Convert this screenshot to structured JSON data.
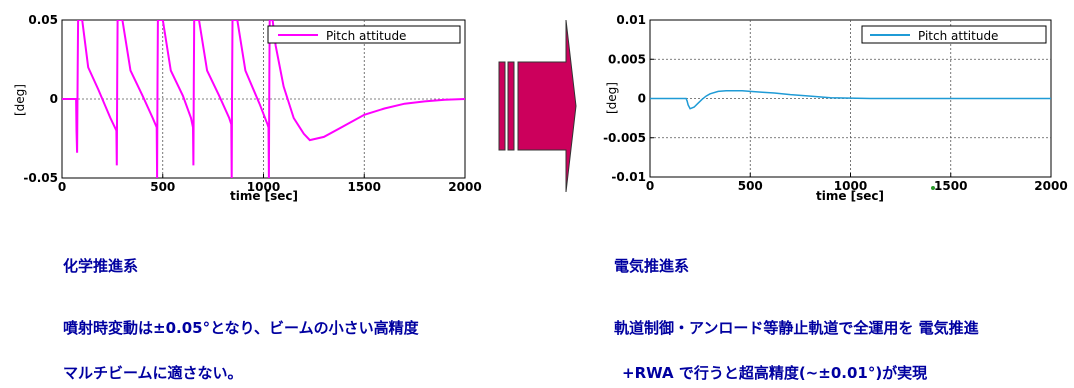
{
  "colors": {
    "left_series": "#ff00ff",
    "right_series": "#1f9bd6",
    "arrow": "#cc005c",
    "caption": "#0000a0"
  },
  "charts": [
    {
      "type": "line",
      "ylabel": "[deg]",
      "xlabel": "time [sec]",
      "legend": "Pitch attitude",
      "legend_position": "top-right",
      "grid": true,
      "xlim": [
        0,
        2000
      ],
      "ylim": [
        -0.05,
        0.05
      ],
      "xticks": [
        0,
        500,
        1000,
        1500,
        2000
      ],
      "xtick_labels": [
        "0",
        "500",
        "1000",
        "1500",
        "2000"
      ],
      "yticks": [
        0.05,
        0,
        -0.05
      ],
      "ytick_labels": [
        "0.05",
        "0",
        "-0.05"
      ],
      "series": [
        {
          "color": "#ff00ff",
          "x": [
            0,
            60,
            70,
            72,
            75,
            78,
            80,
            90,
            100,
            130,
            180,
            240,
            270,
            272,
            274,
            276,
            278,
            290,
            300,
            340,
            400,
            450,
            470,
            472,
            474,
            476,
            478,
            490,
            500,
            540,
            600,
            640,
            650,
            652,
            654,
            656,
            658,
            670,
            680,
            720,
            780,
            830,
            840,
            842,
            844,
            846,
            848,
            860,
            870,
            910,
            980,
            1020,
            1025,
            1027,
            1029,
            1031,
            1033,
            1045,
            1060,
            1100,
            1150,
            1200,
            1230,
            1300,
            1400,
            1500,
            1600,
            1700,
            1800,
            1900,
            2000
          ],
          "y": [
            0,
            0,
            0,
            -0.02,
            -0.034,
            0.02,
            0.05,
            0.05,
            0.05,
            0.02,
            0.006,
            -0.012,
            -0.02,
            -0.042,
            0.01,
            0.05,
            0.05,
            0.05,
            0.05,
            0.018,
            0.002,
            -0.012,
            -0.018,
            -0.05,
            0.01,
            0.05,
            0.05,
            0.05,
            0.05,
            0.018,
            0.002,
            -0.012,
            -0.018,
            -0.042,
            0.01,
            0.05,
            0.05,
            0.05,
            0.05,
            0.018,
            0.002,
            -0.012,
            -0.016,
            -0.05,
            0.01,
            0.05,
            0.05,
            0.05,
            0.05,
            0.018,
            -0.003,
            -0.016,
            -0.018,
            -0.05,
            0.01,
            0.05,
            0.05,
            0.05,
            0.034,
            0.008,
            -0.012,
            -0.022,
            -0.026,
            -0.024,
            -0.017,
            -0.01,
            -0.006,
            -0.003,
            -0.0015,
            -0.0005,
            0
          ]
        }
      ]
    },
    {
      "type": "line",
      "ylabel": "[deg]",
      "xlabel": "time [sec]",
      "legend": "Pitch attitude",
      "legend_position": "top-right",
      "grid": true,
      "xlim": [
        0,
        2000
      ],
      "ylim": [
        -0.01,
        0.01
      ],
      "xticks": [
        0,
        500,
        1000,
        1500,
        2000
      ],
      "xtick_labels": [
        "0",
        "500",
        "1000",
        "1500",
        "2000"
      ],
      "yticks": [
        0.01,
        0.005,
        0,
        -0.005,
        -0.01
      ],
      "ytick_labels": [
        "0.01",
        "0.005",
        "0",
        "-0.005",
        "-0.01"
      ],
      "series": [
        {
          "color": "#1f9bd6",
          "x": [
            0,
            180,
            185,
            190,
            200,
            220,
            240,
            260,
            280,
            300,
            340,
            380,
            420,
            460,
            500,
            560,
            620,
            700,
            800,
            900,
            1000,
            1100,
            1200,
            1400,
            1600,
            1800,
            2000
          ],
          "y": [
            0,
            0,
            -0.0003,
            -0.0008,
            -0.0013,
            -0.0011,
            -0.0006,
            -0.0001,
            0.0003,
            0.0006,
            0.0009,
            0.001,
            0.001,
            0.001,
            0.0009,
            0.0008,
            0.0007,
            0.0005,
            0.0003,
            0.0001,
            5e-05,
            0,
            0,
            0,
            0,
            0,
            0
          ]
        }
      ]
    }
  ],
  "captions": {
    "left_title": "化学推進系",
    "left_line1": "噴射時変動は±0.05°となり、ビームの小さい高精度",
    "left_line2": "マルチビームに適さない。",
    "right_title": "電気推進系",
    "right_line1": "軌道制御・アンロード等静止軌道で全運用を 電気推進",
    "right_line2": "+RWA で行うと超高精度(~±0.01°)が実現"
  }
}
